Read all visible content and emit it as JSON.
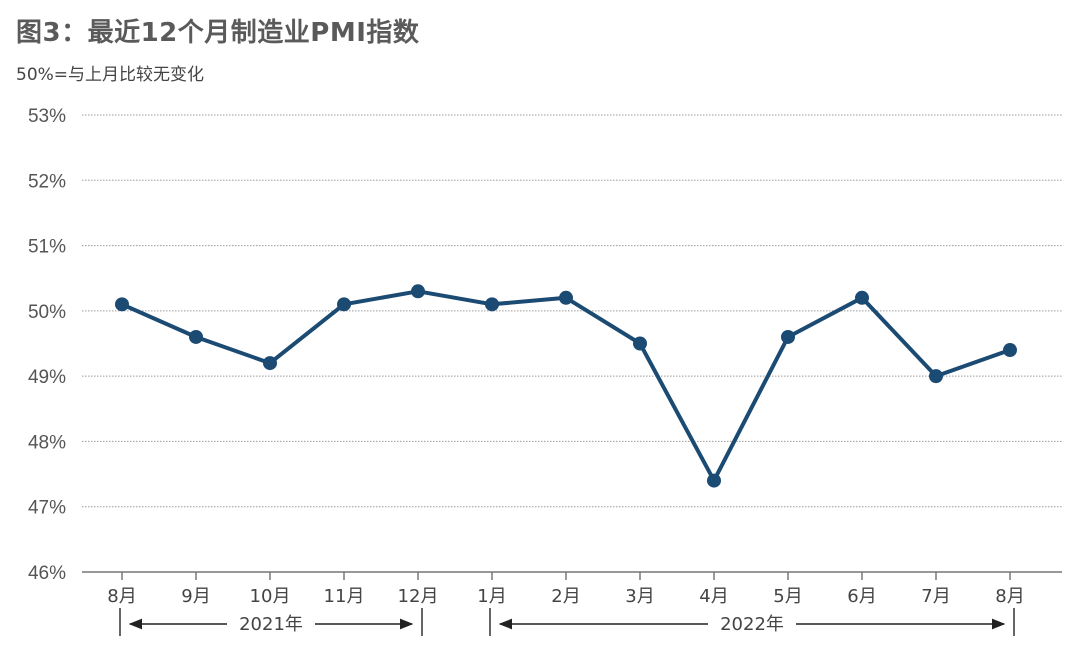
{
  "header": {
    "title": "图3：最近12个月制造业PMI指数",
    "subtitle": "50%=与上月比较无变化"
  },
  "colors": {
    "line": "#1b4a73",
    "grid": "#9a9a9a",
    "axis": "#777777"
  },
  "chart_data": {
    "type": "line",
    "title": "图3：最近12个月制造业PMI指数",
    "categories": [
      "8月",
      "9月",
      "10月",
      "11月",
      "12月",
      "1月",
      "2月",
      "3月",
      "4月",
      "5月",
      "6月",
      "7月",
      "8月"
    ],
    "series": [
      {
        "values": [
          50.1,
          49.6,
          49.2,
          50.1,
          50.3,
          50.1,
          50.2,
          49.5,
          47.4,
          49.6,
          50.2,
          49.0,
          49.4
        ]
      }
    ],
    "y_ticks": [
      "46%",
      "47%",
      "48%",
      "49%",
      "50%",
      "51%",
      "52%",
      "53%"
    ],
    "ylim": [
      46,
      53
    ],
    "grid": true,
    "year_groups": [
      {
        "label": "2021年",
        "from_index": 0,
        "to_index": 4
      },
      {
        "label": "2022年",
        "from_index": 5,
        "to_index": 12
      }
    ]
  }
}
